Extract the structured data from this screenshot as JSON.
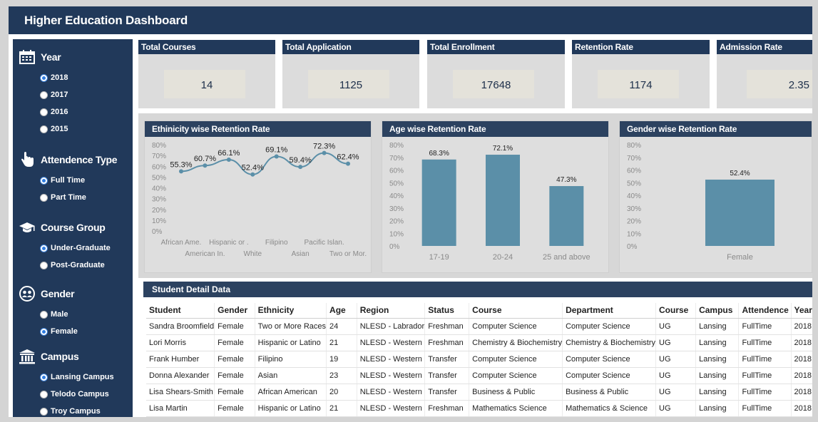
{
  "header": {
    "title": "Higher Education Dashboard"
  },
  "sidebar": {
    "groups": [
      {
        "label": "Year",
        "icon": "calendar-icon",
        "options": [
          {
            "label": "2018",
            "selected": true
          },
          {
            "label": "2017",
            "selected": false
          },
          {
            "label": "2016",
            "selected": false
          },
          {
            "label": "2015",
            "selected": false
          }
        ]
      },
      {
        "label": "Attendence Type",
        "icon": "hand-cursor-icon",
        "options": [
          {
            "label": "Full Time",
            "selected": true
          },
          {
            "label": "Part Time",
            "selected": false
          }
        ]
      },
      {
        "label": "Course Group",
        "icon": "graduation-cap-icon",
        "options": [
          {
            "label": "Under-Graduate",
            "selected": true
          },
          {
            "label": "Post-Graduate",
            "selected": false
          }
        ]
      },
      {
        "label": "Gender",
        "icon": "people-icon",
        "options": [
          {
            "label": "Male",
            "selected": false
          },
          {
            "label": "Female",
            "selected": true
          }
        ]
      },
      {
        "label": "Campus",
        "icon": "building-icon",
        "options": [
          {
            "label": "Lansing Campus",
            "selected": true
          },
          {
            "label": "Telodo Campus",
            "selected": false
          },
          {
            "label": "Troy Campus",
            "selected": false
          }
        ]
      }
    ]
  },
  "kpis": [
    {
      "label": "Total Courses",
      "value": "14"
    },
    {
      "label": "Total Application",
      "value": "1125"
    },
    {
      "label": "Total Enrollment",
      "value": "17648"
    },
    {
      "label": "Retention Rate",
      "value": "1174"
    },
    {
      "label": "Admission Rate",
      "value": "2.35"
    }
  ],
  "colors": {
    "navy": "#21395a",
    "panel_header": "#2c4260",
    "series": "#5b8fa8"
  },
  "chart_data": [
    {
      "type": "line",
      "title": "Ethinicity wise Retention Rate",
      "categories": [
        "African Ame.",
        "American In.",
        "Hispanic or .",
        "White",
        "Filipino",
        "Asian",
        "Pacific Islan.",
        "Two or Mor."
      ],
      "values": [
        55.3,
        60.7,
        66.1,
        52.4,
        69.1,
        59.4,
        72.3,
        62.4
      ],
      "data_labels": [
        "55.3%",
        "60.7%",
        "66.1%",
        "52.4%",
        "69.1%",
        "59.4%",
        "72.3%",
        "62.4%"
      ],
      "yticks": [
        "80%",
        "70%",
        "60%",
        "50%",
        "40%",
        "30%",
        "20%",
        "10%",
        "0%"
      ],
      "ylim": [
        0,
        80
      ]
    },
    {
      "type": "bar",
      "title": "Age wise Retention Rate",
      "categories": [
        "17-19",
        "20-24",
        "25 and above"
      ],
      "values": [
        68.3,
        72.1,
        47.3
      ],
      "data_labels": [
        "68.3%",
        "72.1%",
        "47.3%"
      ],
      "yticks": [
        "80%",
        "70%",
        "60%",
        "50%",
        "40%",
        "30%",
        "20%",
        "10%",
        "0%"
      ],
      "ylim": [
        0,
        80
      ]
    },
    {
      "type": "bar",
      "title": "Gender wise Retention Rate",
      "categories": [
        "Female"
      ],
      "values": [
        52.4
      ],
      "data_labels": [
        "52.4%"
      ],
      "yticks": [
        "80%",
        "70%",
        "60%",
        "50%",
        "40%",
        "30%",
        "20%",
        "10%",
        "0%"
      ],
      "ylim": [
        0,
        80
      ]
    }
  ],
  "table": {
    "title": "Student Detail Data",
    "columns": [
      "Student",
      "Gender",
      "Ethnicity",
      "Age",
      "Region",
      "Status",
      "Course",
      "Department",
      "Course",
      "Campus",
      "Attendence",
      "Year"
    ],
    "rows": [
      [
        "Sandra Broomfield",
        "Female",
        "Two or More Races",
        "24",
        "NLESD - Labrador",
        "Freshman",
        "Computer Science",
        "Computer Science",
        "UG",
        "Lansing",
        "FullTime",
        "2018"
      ],
      [
        "Lori Morris",
        "Female",
        "Hispanic or Latino",
        "21",
        "NLESD - Western",
        "Freshman",
        "Chemistry & Biochemistry",
        "Chemistry & Biochemistry",
        "UG",
        "Lansing",
        "FullTime",
        "2018"
      ],
      [
        "Frank Humber",
        "Female",
        "Filipino",
        "19",
        "NLESD - Western",
        "Transfer",
        "Computer Science",
        "Computer Science",
        "UG",
        "Lansing",
        "FullTime",
        "2018"
      ],
      [
        "Donna Alexander",
        "Female",
        "Asian",
        "23",
        "NLESD - Western",
        "Transfer",
        "Computer Science",
        "Computer Science",
        "UG",
        "Lansing",
        "FullTime",
        "2018"
      ],
      [
        "Lisa Shears-Smith",
        "Female",
        "African American",
        "20",
        "NLESD - Western",
        "Transfer",
        "Business & Public",
        "Business & Public",
        "UG",
        "Lansing",
        "FullTime",
        "2018"
      ],
      [
        "Lisa Martin",
        "Female",
        "Hispanic or Latino",
        "21",
        "NLESD - Western",
        "Freshman",
        "Mathematics Science",
        "Mathematics & Science",
        "UG",
        "Lansing",
        "FullTime",
        "2018"
      ]
    ]
  }
}
